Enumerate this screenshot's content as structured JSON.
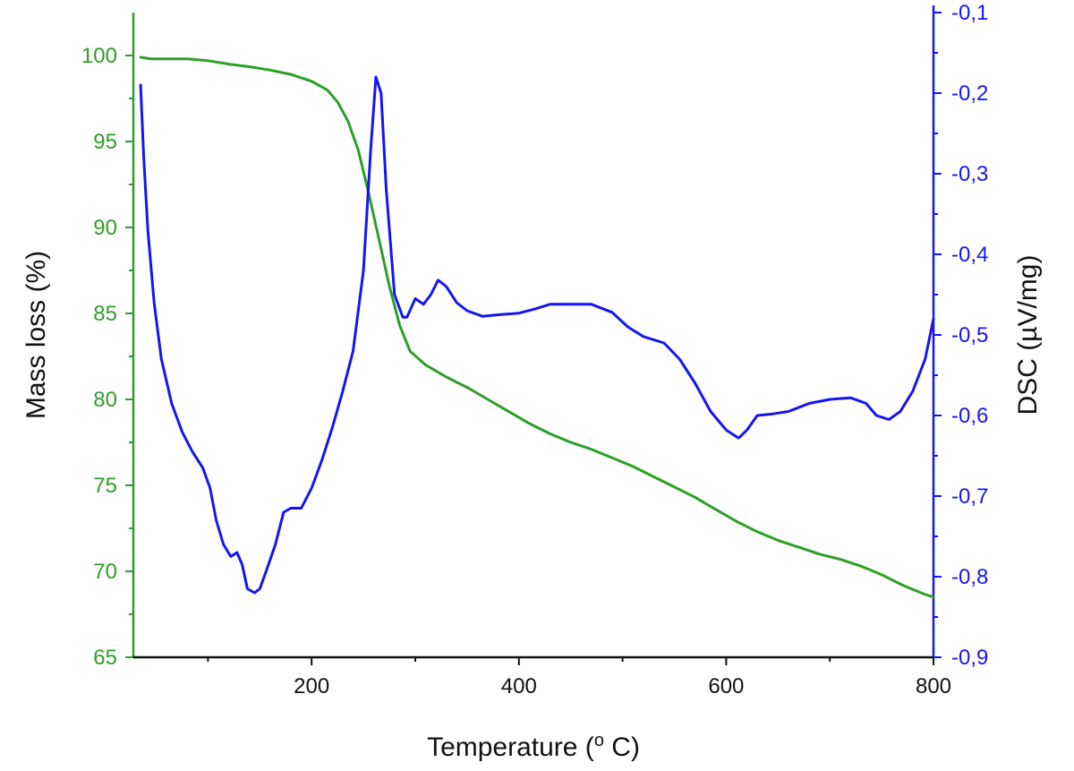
{
  "chart_data": {
    "type": "line",
    "title": "",
    "xlabel": {
      "main": "Temperature (",
      "sup": "o",
      "post": " C)"
    },
    "ylabel_left": "Mass loss (%)",
    "ylabel_right": "DSC (µV/mg)",
    "xlim": [
      28,
      800
    ],
    "ylim_left": [
      65,
      102.5
    ],
    "ylim_right": [
      -0.9,
      -0.1
    ],
    "x_ticks": [
      "200",
      "400",
      "600",
      "800"
    ],
    "y_left_ticks": [
      "65",
      "70",
      "75",
      "80",
      "85",
      "90",
      "95",
      "100"
    ],
    "y_right_ticks": [
      "-0,9",
      "-0,8",
      "-0,7",
      "-0,6",
      "-0,5",
      "-0,4",
      "-0,3",
      "-0,2",
      "-0,1"
    ],
    "grid": false,
    "colors": {
      "mass": "#2e9e2a",
      "dsc": "#1515f2",
      "axis_left": "#2e9e2a",
      "axis_right": "#1515f2",
      "axis_bottom": "#111111"
    },
    "series": [
      {
        "key": "mass",
        "axis": "left",
        "values": [
          [
            35,
            99.9
          ],
          [
            45,
            99.8
          ],
          [
            60,
            99.8
          ],
          [
            80,
            99.8
          ],
          [
            100,
            99.7
          ],
          [
            120,
            99.5
          ],
          [
            140,
            99.35
          ],
          [
            160,
            99.15
          ],
          [
            180,
            98.9
          ],
          [
            200,
            98.5
          ],
          [
            215,
            98.0
          ],
          [
            225,
            97.3
          ],
          [
            235,
            96.2
          ],
          [
            245,
            94.5
          ],
          [
            255,
            92.0
          ],
          [
            265,
            89.3
          ],
          [
            275,
            86.6
          ],
          [
            285,
            84.3
          ],
          [
            295,
            82.8
          ],
          [
            310,
            82.0
          ],
          [
            330,
            81.3
          ],
          [
            350,
            80.7
          ],
          [
            370,
            80.0
          ],
          [
            390,
            79.3
          ],
          [
            410,
            78.6
          ],
          [
            430,
            78.0
          ],
          [
            450,
            77.5
          ],
          [
            470,
            77.1
          ],
          [
            490,
            76.6
          ],
          [
            510,
            76.1
          ],
          [
            530,
            75.5
          ],
          [
            550,
            74.9
          ],
          [
            570,
            74.3
          ],
          [
            590,
            73.6
          ],
          [
            610,
            72.9
          ],
          [
            630,
            72.3
          ],
          [
            650,
            71.8
          ],
          [
            670,
            71.4
          ],
          [
            690,
            71.0
          ],
          [
            710,
            70.7
          ],
          [
            730,
            70.3
          ],
          [
            750,
            69.8
          ],
          [
            770,
            69.2
          ],
          [
            790,
            68.7
          ],
          [
            800,
            68.5
          ]
        ]
      },
      {
        "key": "dsc",
        "axis": "right",
        "values": [
          [
            35,
            -0.19
          ],
          [
            38,
            -0.28
          ],
          [
            42,
            -0.37
          ],
          [
            48,
            -0.46
          ],
          [
            55,
            -0.53
          ],
          [
            65,
            -0.585
          ],
          [
            75,
            -0.62
          ],
          [
            85,
            -0.645
          ],
          [
            95,
            -0.665
          ],
          [
            102,
            -0.69
          ],
          [
            108,
            -0.73
          ],
          [
            115,
            -0.76
          ],
          [
            122,
            -0.775
          ],
          [
            128,
            -0.77
          ],
          [
            133,
            -0.785
          ],
          [
            138,
            -0.815
          ],
          [
            145,
            -0.82
          ],
          [
            150,
            -0.815
          ],
          [
            157,
            -0.79
          ],
          [
            165,
            -0.76
          ],
          [
            173,
            -0.72
          ],
          [
            180,
            -0.715
          ],
          [
            190,
            -0.715
          ],
          [
            200,
            -0.69
          ],
          [
            210,
            -0.655
          ],
          [
            220,
            -0.615
          ],
          [
            230,
            -0.57
          ],
          [
            240,
            -0.52
          ],
          [
            250,
            -0.42
          ],
          [
            257,
            -0.27
          ],
          [
            262,
            -0.18
          ],
          [
            267,
            -0.2
          ],
          [
            272,
            -0.32
          ],
          [
            280,
            -0.45
          ],
          [
            288,
            -0.478
          ],
          [
            292,
            -0.478
          ],
          [
            300,
            -0.455
          ],
          [
            308,
            -0.462
          ],
          [
            315,
            -0.45
          ],
          [
            322,
            -0.432
          ],
          [
            330,
            -0.44
          ],
          [
            340,
            -0.46
          ],
          [
            350,
            -0.47
          ],
          [
            365,
            -0.477
          ],
          [
            380,
            -0.475
          ],
          [
            400,
            -0.473
          ],
          [
            415,
            -0.468
          ],
          [
            430,
            -0.462
          ],
          [
            450,
            -0.462
          ],
          [
            470,
            -0.462
          ],
          [
            490,
            -0.472
          ],
          [
            505,
            -0.49
          ],
          [
            520,
            -0.502
          ],
          [
            540,
            -0.51
          ],
          [
            555,
            -0.53
          ],
          [
            570,
            -0.56
          ],
          [
            585,
            -0.595
          ],
          [
            600,
            -0.618
          ],
          [
            612,
            -0.628
          ],
          [
            620,
            -0.618
          ],
          [
            630,
            -0.6
          ],
          [
            645,
            -0.598
          ],
          [
            660,
            -0.595
          ],
          [
            680,
            -0.585
          ],
          [
            700,
            -0.58
          ],
          [
            720,
            -0.578
          ],
          [
            735,
            -0.585
          ],
          [
            745,
            -0.6
          ],
          [
            757,
            -0.605
          ],
          [
            768,
            -0.595
          ],
          [
            780,
            -0.57
          ],
          [
            792,
            -0.53
          ],
          [
            800,
            -0.48
          ]
        ]
      }
    ]
  }
}
